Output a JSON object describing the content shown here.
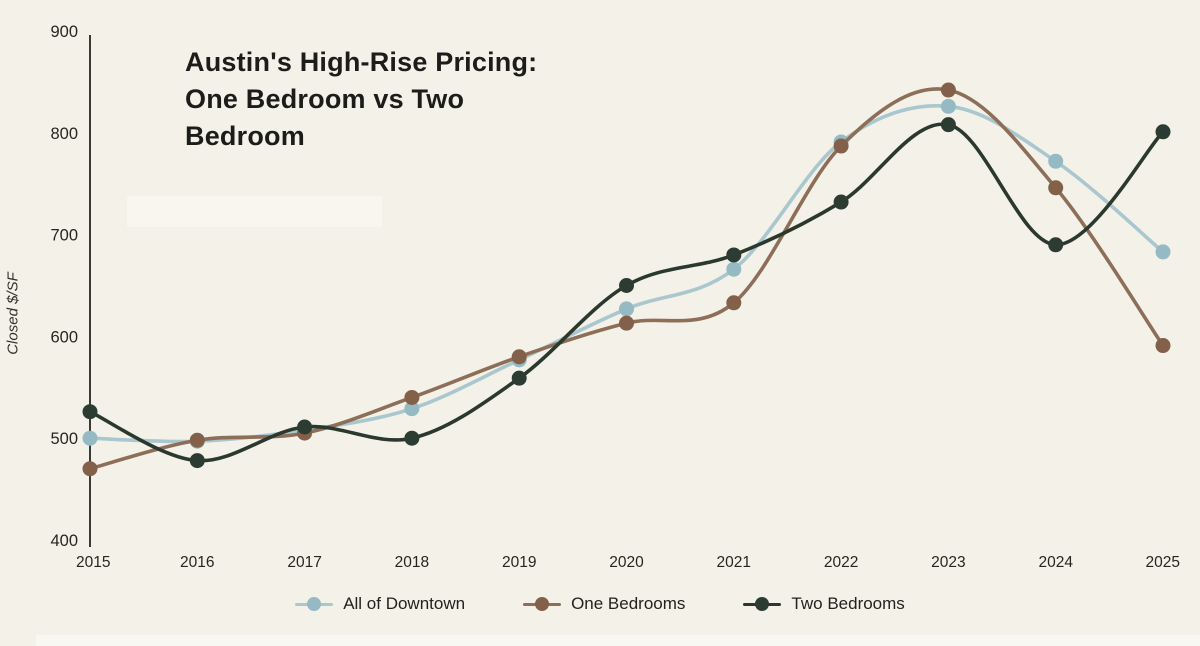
{
  "page": {
    "background": "#f4f1e8"
  },
  "chart_data": {
    "type": "line",
    "title": "Austin's High-Rise Pricing: One Bedroom vs Two Bedroom",
    "ylabel": "Closed $/SF",
    "xlabel": "",
    "categories": [
      "2015",
      "2016",
      "2017",
      "2018",
      "2019",
      "2020",
      "2021",
      "2022",
      "2023",
      "2024",
      "2025"
    ],
    "yticks": [
      400,
      500,
      600,
      700,
      800,
      900
    ],
    "ylim": [
      400,
      900
    ],
    "grid": false,
    "legend_position": "bottom",
    "smoothing": "catmull-rom",
    "axis_color": "#3a3a35",
    "tick_color": "#262621",
    "series": [
      {
        "name": "All of Downtown",
        "line_color": "#a9c7cf",
        "dot_color": "#95bac4",
        "values": [
          500,
          497,
          508,
          529,
          577,
          627,
          666,
          791,
          826,
          772,
          683
        ]
      },
      {
        "name": "One Bedrooms",
        "line_color": "#8d6e58",
        "dot_color": "#82604a",
        "values": [
          470,
          498,
          505,
          540,
          580,
          613,
          633,
          787,
          842,
          746,
          591
        ]
      },
      {
        "name": "Two Bedrooms",
        "line_color": "#2b382e",
        "dot_color": "#2d3c32",
        "values": [
          526,
          478,
          511,
          500,
          559,
          650,
          680,
          732,
          808,
          690,
          801
        ]
      }
    ]
  }
}
